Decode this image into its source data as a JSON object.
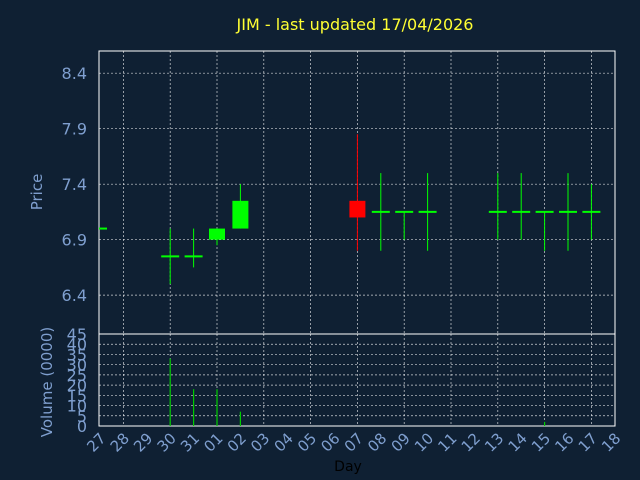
{
  "colors": {
    "background": "#0f2033",
    "frame": "#ffffff",
    "grid": "#ffffff",
    "axis_text": "#7f9fcf",
    "title": "#ffff33",
    "up": "#00ff00",
    "down": "#ff0000",
    "volume": "#00cc00"
  },
  "chart_data": [
    {
      "type": "candlestick",
      "title": "JIM - last updated 17/04/2026",
      "ylabel": "Price",
      "ylim": [
        6.05,
        8.6
      ],
      "yticks": [
        6.4,
        6.9,
        7.4,
        7.9,
        8.4
      ],
      "grid": true,
      "categories": [
        "27",
        "28",
        "29",
        "30",
        "31",
        "01",
        "02",
        "03",
        "04",
        "05",
        "06",
        "07",
        "08",
        "09",
        "10",
        "11",
        "12",
        "13",
        "14",
        "15",
        "16",
        "17",
        "18"
      ],
      "candles": [
        {
          "x": "27",
          "open": 7.0,
          "high": 7.0,
          "low": 7.0,
          "close": 7.0,
          "partial": true
        },
        {
          "x": "30",
          "open": 6.75,
          "high": 7.0,
          "low": 6.5,
          "close": 6.75
        },
        {
          "x": "31",
          "open": 6.75,
          "high": 7.0,
          "low": 6.65,
          "close": 6.75
        },
        {
          "x": "01",
          "open": 6.9,
          "high": 7.0,
          "low": 6.85,
          "close": 7.0
        },
        {
          "x": "02",
          "open": 7.0,
          "high": 7.4,
          "low": 7.0,
          "close": 7.25
        },
        {
          "x": "07",
          "open": 7.25,
          "high": 7.85,
          "low": 6.8,
          "close": 7.1
        },
        {
          "x": "08",
          "open": 7.15,
          "high": 7.5,
          "low": 6.8,
          "close": 7.15
        },
        {
          "x": "09",
          "open": 7.15,
          "high": 7.15,
          "low": 6.9,
          "close": 7.15
        },
        {
          "x": "10",
          "open": 7.15,
          "high": 7.5,
          "low": 6.8,
          "close": 7.15
        },
        {
          "x": "13",
          "open": 7.15,
          "high": 7.5,
          "low": 6.9,
          "close": 7.15
        },
        {
          "x": "14",
          "open": 7.15,
          "high": 7.5,
          "low": 6.9,
          "close": 7.15
        },
        {
          "x": "15",
          "open": 7.15,
          "high": 7.15,
          "low": 6.8,
          "close": 7.15
        },
        {
          "x": "16",
          "open": 7.15,
          "high": 7.5,
          "low": 6.8,
          "close": 7.15
        },
        {
          "x": "17",
          "open": 7.15,
          "high": 7.4,
          "low": 6.9,
          "close": 7.15
        }
      ]
    },
    {
      "type": "bar",
      "ylabel": "Volume (0000)",
      "xlabel": "Day",
      "ylim": [
        0,
        45
      ],
      "yticks": [
        0,
        5,
        10,
        15,
        20,
        25,
        30,
        35,
        40,
        45
      ],
      "grid": true,
      "categories": [
        "27",
        "28",
        "29",
        "30",
        "31",
        "01",
        "02",
        "03",
        "04",
        "05",
        "06",
        "07",
        "08",
        "09",
        "10",
        "11",
        "12",
        "13",
        "14",
        "15",
        "16",
        "17",
        "18"
      ],
      "values": {
        "30": 33,
        "31": 18,
        "01": 18,
        "02": 7,
        "15": 2
      }
    }
  ]
}
